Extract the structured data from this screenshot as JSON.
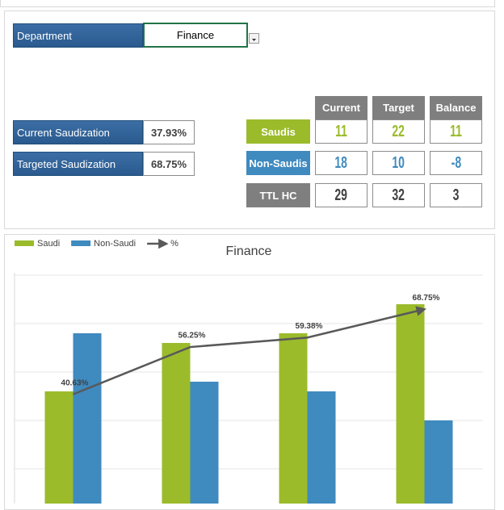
{
  "dashboard": {
    "department_label": "Department",
    "department": "Finance",
    "current_label": "Current Saudization",
    "current": "37.93%",
    "targeted_label": "Targeted Saudization",
    "targeted": "68.75%",
    "table": {
      "columns": [
        "Current",
        "Target",
        "Balance"
      ],
      "rows": [
        {
          "label": "Saudis",
          "values": [
            11,
            22,
            11
          ]
        },
        {
          "label": "Non-Saudis",
          "values": [
            18,
            10,
            -8
          ]
        },
        {
          "label": "TTL HC",
          "values": [
            29,
            32,
            3
          ]
        }
      ]
    }
  },
  "chart_data": {
    "type": "bar",
    "title": "Finance",
    "series": [
      {
        "name": "Saudi",
        "color": "#9bbb2b",
        "values": [
          13,
          18,
          19,
          22
        ]
      },
      {
        "name": "Non-Saudi",
        "color": "#3f8abf",
        "values": [
          19,
          14,
          13,
          10
        ]
      },
      {
        "name": "%",
        "type": "line",
        "axis": "y2",
        "color": "#595959",
        "values": [
          40.63,
          56.25,
          59.38,
          68.75
        ],
        "value_labels": [
          "40.63%",
          "56.25%",
          "59.38%",
          "68.75%"
        ]
      }
    ],
    "ylim": [
      0,
      25
    ],
    "yticks": [
      0,
      5,
      10,
      15,
      20,
      25
    ],
    "y2lim": [
      0,
      80
    ],
    "grid": true
  }
}
